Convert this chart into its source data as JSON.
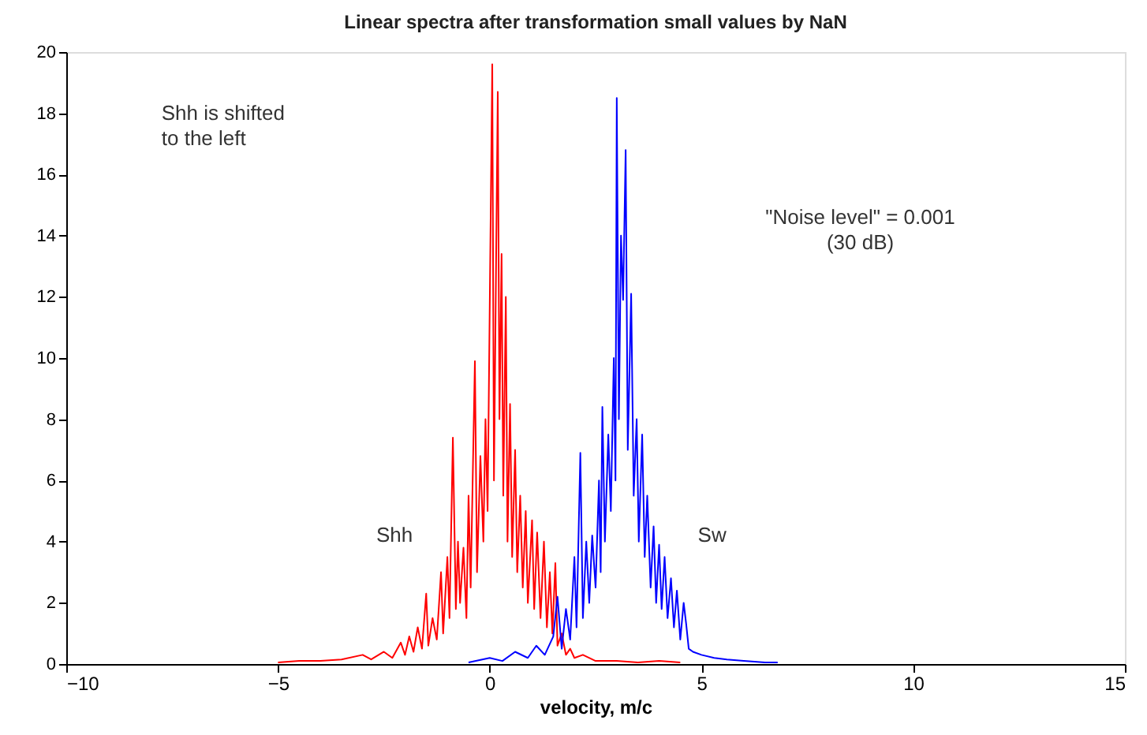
{
  "chart_data": {
    "type": "line",
    "title": "Linear spectra after transformation small values by NaN",
    "xlabel": "velocity, m/c",
    "annotations": [
      "Shh is shifted\nto the left",
      "\"Noise level\" = 0.001\n(30 dB)"
    ],
    "xlim": [
      -10,
      15
    ],
    "xticks": [
      -10,
      -5,
      0,
      5,
      10,
      15
    ],
    "ylim": [
      0,
      20
    ],
    "yticks": [
      0,
      2,
      4,
      6,
      8,
      10,
      12,
      14,
      16,
      18,
      20
    ],
    "marker": "none",
    "line_style": "solid",
    "series": [
      {
        "name": "Shh",
        "color": "#ff0000",
        "x": [
          -5.0,
          -4.5,
          -4.0,
          -3.5,
          -3.0,
          -2.8,
          -2.5,
          -2.3,
          -2.1,
          -2.0,
          -1.9,
          -1.8,
          -1.7,
          -1.6,
          -1.5,
          -1.45,
          -1.35,
          -1.25,
          -1.15,
          -1.1,
          -1.0,
          -0.95,
          -0.87,
          -0.8,
          -0.75,
          -0.7,
          -0.62,
          -0.55,
          -0.5,
          -0.45,
          -0.35,
          -0.3,
          -0.22,
          -0.15,
          -0.1,
          -0.05,
          0.06,
          0.1,
          0.19,
          0.23,
          0.28,
          0.32,
          0.38,
          0.42,
          0.48,
          0.53,
          0.6,
          0.65,
          0.72,
          0.78,
          0.85,
          0.9,
          1.0,
          1.05,
          1.12,
          1.2,
          1.28,
          1.35,
          1.42,
          1.48,
          1.55,
          1.6,
          1.7,
          1.8,
          1.9,
          2.0,
          2.2,
          2.5,
          3.0,
          3.5,
          4.0,
          4.5
        ],
        "values": [
          0.05,
          0.1,
          0.1,
          0.15,
          0.3,
          0.15,
          0.4,
          0.2,
          0.7,
          0.3,
          0.9,
          0.4,
          1.2,
          0.5,
          2.3,
          0.6,
          1.5,
          0.8,
          3.0,
          1.0,
          3.5,
          1.5,
          7.4,
          1.8,
          4.0,
          2.0,
          3.8,
          1.5,
          5.5,
          2.5,
          9.9,
          3.0,
          6.8,
          4.0,
          8.0,
          5.0,
          19.6,
          6.0,
          18.7,
          8.0,
          13.4,
          5.5,
          12.0,
          4.0,
          8.5,
          3.5,
          7.0,
          3.0,
          5.5,
          2.5,
          5.0,
          2.0,
          4.7,
          1.8,
          4.3,
          1.5,
          4.0,
          1.2,
          3.0,
          1.0,
          3.3,
          0.6,
          1.0,
          0.3,
          0.5,
          0.2,
          0.3,
          0.1,
          0.1,
          0.05,
          0.1,
          0.05
        ]
      },
      {
        "name": "Sw",
        "color": "#0000ff",
        "x": [
          -0.5,
          0.0,
          0.3,
          0.6,
          0.9,
          1.1,
          1.3,
          1.5,
          1.6,
          1.7,
          1.8,
          1.9,
          2.0,
          2.05,
          2.14,
          2.2,
          2.28,
          2.35,
          2.42,
          2.5,
          2.58,
          2.62,
          2.66,
          2.72,
          2.8,
          2.86,
          2.93,
          2.97,
          3.0,
          3.05,
          3.1,
          3.15,
          3.21,
          3.26,
          3.34,
          3.4,
          3.47,
          3.52,
          3.6,
          3.66,
          3.72,
          3.8,
          3.87,
          3.93,
          4.0,
          4.06,
          4.13,
          4.2,
          4.28,
          4.35,
          4.42,
          4.5,
          4.58,
          4.64,
          4.7,
          4.8,
          5.0,
          5.3,
          5.6,
          6.0,
          6.5,
          6.8
        ],
        "values": [
          0.05,
          0.2,
          0.1,
          0.4,
          0.2,
          0.6,
          0.3,
          0.9,
          2.2,
          0.5,
          1.8,
          0.8,
          3.5,
          1.2,
          6.9,
          1.5,
          4.0,
          2.0,
          4.2,
          2.5,
          6.0,
          3.0,
          8.4,
          4.0,
          7.5,
          5.0,
          10.0,
          6.0,
          18.5,
          8.0,
          14.0,
          11.9,
          16.8,
          7.0,
          12.1,
          5.5,
          8.0,
          4.0,
          7.5,
          3.5,
          5.5,
          2.5,
          4.5,
          2.0,
          3.9,
          1.8,
          3.5,
          1.5,
          2.8,
          1.2,
          2.4,
          0.8,
          2.0,
          1.3,
          0.5,
          0.4,
          0.3,
          0.2,
          0.15,
          0.1,
          0.05,
          0.05
        ]
      }
    ]
  }
}
